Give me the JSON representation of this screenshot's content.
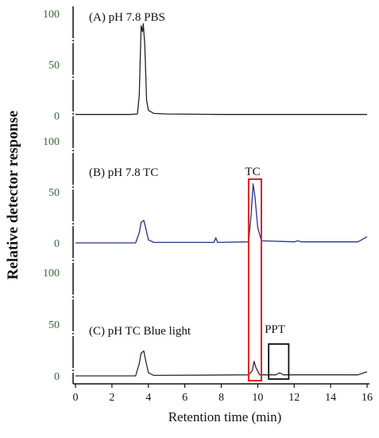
{
  "chart_data": {
    "type": "line",
    "ylabel": "Relative detector response",
    "xlabel": "Retention time (min)",
    "xlim": [
      0,
      16
    ],
    "x_ticks": [
      "0",
      "2",
      "4",
      "6",
      "8",
      "10",
      "12",
      "14",
      "16"
    ],
    "panels": [
      {
        "title": "(A) pH 7.8 PBS",
        "ylim": [
          0,
          100
        ],
        "y_ticks": [
          "0",
          "50",
          "100"
        ],
        "series_color": "#222222",
        "points": [
          [
            0.0,
            1
          ],
          [
            3.0,
            1
          ],
          [
            3.4,
            1.5
          ],
          [
            3.5,
            20
          ],
          [
            3.6,
            88
          ],
          [
            3.68,
            82
          ],
          [
            3.72,
            90
          ],
          [
            3.8,
            70
          ],
          [
            3.9,
            15
          ],
          [
            4.0,
            5
          ],
          [
            4.3,
            2
          ],
          [
            5.0,
            1.5
          ],
          [
            8.0,
            1
          ],
          [
            12.0,
            1
          ],
          [
            16.0,
            1
          ]
        ]
      },
      {
        "title": "(B) pH 7.8 TC",
        "ylim": [
          0,
          100
        ],
        "y_ticks": [
          "0",
          "50",
          "100"
        ],
        "series_color": "#26328a",
        "points": [
          [
            0.0,
            0
          ],
          [
            3.3,
            0
          ],
          [
            3.5,
            10
          ],
          [
            3.6,
            20
          ],
          [
            3.75,
            22
          ],
          [
            3.85,
            15
          ],
          [
            4.0,
            3
          ],
          [
            4.3,
            0.5
          ],
          [
            7.6,
            0.5
          ],
          [
            7.7,
            5
          ],
          [
            7.8,
            0.5
          ],
          [
            9.5,
            1
          ],
          [
            9.65,
            30
          ],
          [
            9.75,
            58
          ],
          [
            9.85,
            45
          ],
          [
            10.0,
            15
          ],
          [
            10.2,
            2
          ],
          [
            12.0,
            1
          ],
          [
            12.2,
            2
          ],
          [
            12.4,
            1
          ],
          [
            15.5,
            1
          ],
          [
            16.0,
            6
          ]
        ]
      },
      {
        "title": "(C) pH TC Blue light",
        "ylim": [
          0,
          100
        ],
        "y_ticks": [
          "0",
          "50",
          "100"
        ],
        "series_color": "#3a1f3f",
        "points": [
          [
            0.0,
            0
          ],
          [
            3.3,
            0
          ],
          [
            3.5,
            12
          ],
          [
            3.6,
            22
          ],
          [
            3.75,
            24
          ],
          [
            3.85,
            15
          ],
          [
            4.0,
            3
          ],
          [
            4.3,
            0.5
          ],
          [
            9.5,
            1
          ],
          [
            9.7,
            5
          ],
          [
            9.8,
            14
          ],
          [
            9.9,
            8
          ],
          [
            10.1,
            1
          ],
          [
            11.0,
            1
          ],
          [
            11.2,
            3
          ],
          [
            11.4,
            1
          ],
          [
            15.5,
            1
          ],
          [
            16.0,
            4
          ]
        ]
      }
    ],
    "annotations": [
      {
        "text": "TC",
        "x_range": [
          9.5,
          10.2
        ],
        "box_color": "#e02020"
      },
      {
        "text": "PPT",
        "x_range": [
          10.6,
          11.7
        ],
        "box_color": "#111111"
      }
    ]
  }
}
